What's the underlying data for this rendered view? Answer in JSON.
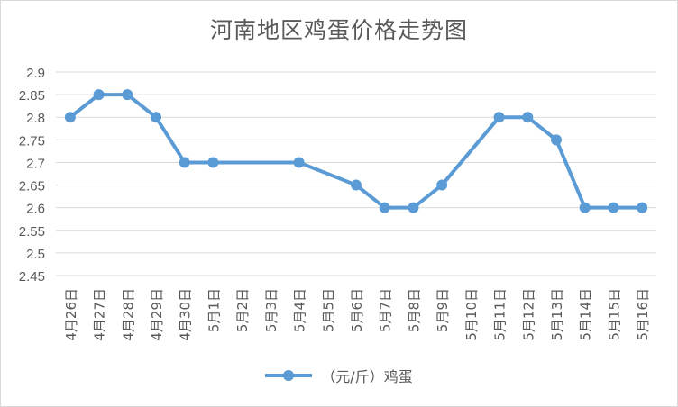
{
  "chart_data": {
    "type": "line",
    "title": "河南地区鸡蛋价格走势图",
    "categories": [
      "4月26日",
      "4月27日",
      "4月28日",
      "4月29日",
      "4月30日",
      "5月1日",
      "5月2日",
      "5月3日",
      "5月4日",
      "5月5日",
      "5月6日",
      "5月7日",
      "5月8日",
      "5月9日",
      "5月10日",
      "5月11日",
      "5月12日",
      "5月13日",
      "5月14日",
      "5月15日",
      "5月16日"
    ],
    "series": [
      {
        "name": "（元/斤）鸡蛋",
        "values": [
          2.8,
          2.85,
          2.85,
          2.8,
          2.7,
          2.7,
          null,
          null,
          2.7,
          null,
          2.65,
          2.6,
          2.6,
          2.65,
          null,
          2.8,
          2.8,
          2.75,
          2.6,
          2.6,
          2.6
        ],
        "color": "#5b9bd5"
      }
    ],
    "y_ticks": [
      "2.9",
      "2.85",
      "2.8",
      "2.75",
      "2.7",
      "2.65",
      "2.6",
      "2.55",
      "2.5",
      "2.45"
    ],
    "ylim": [
      2.45,
      2.9
    ],
    "grid": true,
    "legend_position": "bottom"
  }
}
